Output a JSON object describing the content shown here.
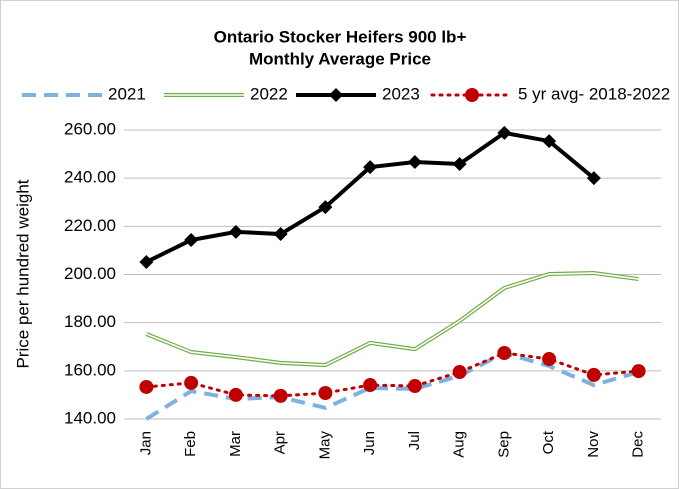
{
  "chart_data": {
    "type": "line",
    "title": "Ontario Stocker Heifers 900 lb+",
    "subtitle": "Monthly Average Price",
    "y_label": "Price per hundred weight",
    "categories": [
      "Jan",
      "Feb",
      "Mar",
      "Apr",
      "May",
      "Jun",
      "Jul",
      "Aug",
      "Sep",
      "Oct",
      "Nov",
      "Dec"
    ],
    "series": [
      {
        "name": "2021",
        "color": "#7fb1e0",
        "style": "dashed",
        "values": [
          140,
          151.6,
          148.3,
          149.1,
          144.6,
          152.9,
          152.5,
          157.9,
          167.4,
          162,
          154.1,
          159.5
        ]
      },
      {
        "name": "2022",
        "color": "#70ad47",
        "style": "double",
        "values": [
          175.3,
          167.8,
          165.7,
          163.3,
          162.4,
          171.6,
          169,
          180.7,
          194.4,
          200.2,
          200.6,
          198.1
        ]
      },
      {
        "name": "2023",
        "color": "#000000",
        "style": "diamond",
        "values": [
          205.2,
          214.3,
          217.7,
          216.8,
          228,
          244.6,
          246.7,
          245.9,
          258.8,
          255.4,
          240,
          null
        ]
      },
      {
        "name": "5 yr avg- 2018-2022",
        "color": "#c00000",
        "style": "dotted",
        "values": [
          153.3,
          155,
          150,
          149.6,
          150.8,
          154.1,
          153.7,
          159.5,
          167.4,
          164.9,
          158.3,
          159.9
        ]
      }
    ],
    "ylim": [
      140,
      260
    ],
    "yticks": [
      {
        "value": 140,
        "label": "140.00"
      },
      {
        "value": 160,
        "label": "160.00"
      },
      {
        "value": 180,
        "label": "180.00"
      },
      {
        "value": 200,
        "label": "200.00"
      },
      {
        "value": 220,
        "label": "220.00"
      },
      {
        "value": 240,
        "label": "240.00"
      },
      {
        "value": 260,
        "label": "260.00"
      }
    ],
    "grid": true,
    "legend": "top"
  }
}
